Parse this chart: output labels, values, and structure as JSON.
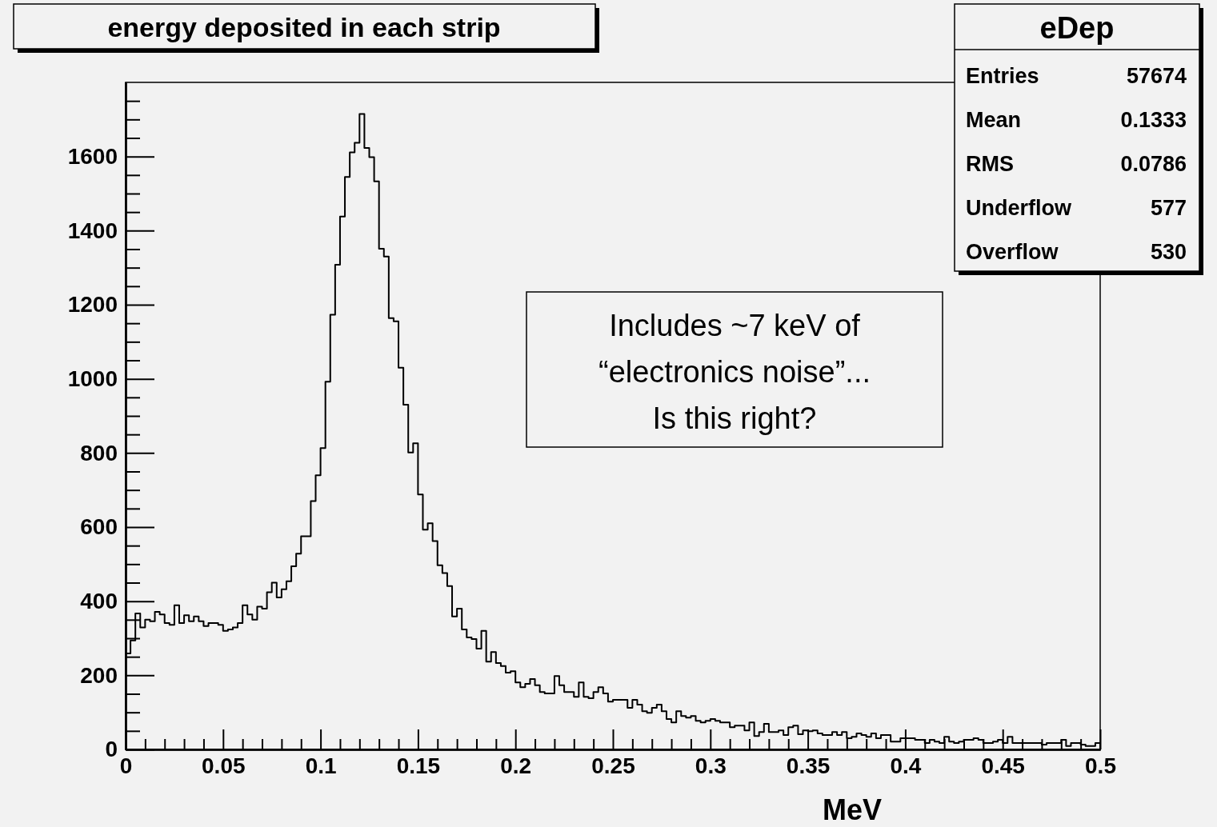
{
  "chart_data": {
    "type": "histogram",
    "title": "energy deposited in each strip",
    "xlabel": "MeV",
    "color": "#000000",
    "bins": [
      0,
      0.0025,
      0.005,
      0.0075,
      0.01,
      0.0125,
      0.015,
      0.0175,
      0.02,
      0.0225,
      0.025,
      0.0275,
      0.03,
      0.0325,
      0.035,
      0.0375,
      0.04,
      0.0425,
      0.045,
      0.0475,
      0.05,
      0.0525,
      0.055,
      0.0575,
      0.06,
      0.0625,
      0.065,
      0.0675,
      0.07,
      0.0725,
      0.075,
      0.0775,
      0.08,
      0.0825,
      0.085,
      0.0875,
      0.09,
      0.0925,
      0.095,
      0.0975,
      0.1,
      0.1025,
      0.105,
      0.1075,
      0.11,
      0.1125,
      0.115,
      0.1175,
      0.12,
      0.1225,
      0.125,
      0.1275,
      0.13,
      0.1325,
      0.135,
      0.1375,
      0.14,
      0.1425,
      0.145,
      0.1475,
      0.15,
      0.1525,
      0.155,
      0.1575,
      0.16,
      0.1625,
      0.165,
      0.1675,
      0.17,
      0.1725,
      0.175,
      0.1775,
      0.18,
      0.1825,
      0.185,
      0.1875,
      0.19,
      0.1925,
      0.195,
      0.1975,
      0.2,
      0.2025,
      0.205,
      0.2075,
      0.21,
      0.2125,
      0.215,
      0.2175,
      0.22,
      0.2225,
      0.225,
      0.2275,
      0.23,
      0.2325,
      0.235,
      0.2375,
      0.24,
      0.2425,
      0.245,
      0.2475,
      0.25,
      0.2525,
      0.255,
      0.2575,
      0.26,
      0.2625,
      0.265,
      0.2675,
      0.27,
      0.2725,
      0.275,
      0.2775,
      0.28,
      0.2825,
      0.285,
      0.2875,
      0.29,
      0.2925,
      0.295,
      0.2975,
      0.3,
      0.3025,
      0.305,
      0.3075,
      0.31,
      0.3125,
      0.315,
      0.3175,
      0.32,
      0.3225,
      0.325,
      0.3275,
      0.33,
      0.3325,
      0.335,
      0.3375,
      0.34,
      0.3425,
      0.345,
      0.3475,
      0.35,
      0.3525,
      0.355,
      0.3575,
      0.36,
      0.3625,
      0.365,
      0.3675,
      0.37,
      0.3725,
      0.375,
      0.3775,
      0.38,
      0.3825,
      0.385,
      0.3875,
      0.39,
      0.3925,
      0.395,
      0.3975,
      0.4,
      0.4025,
      0.405,
      0.4075,
      0.41,
      0.4125,
      0.415,
      0.4175,
      0.42,
      0.4225,
      0.425,
      0.4275,
      0.43,
      0.4325,
      0.435,
      0.4375,
      0.44,
      0.4425,
      0.445,
      0.4475,
      0.45,
      0.4525,
      0.455,
      0.4575,
      0.46,
      0.4625,
      0.465,
      0.4675,
      0.47,
      0.4725,
      0.475,
      0.4775,
      0.48,
      0.4825,
      0.485,
      0.4875,
      0.49,
      0.4925,
      0.495,
      0.4975,
      0.5
    ],
    "values": [
      259,
      294,
      367,
      329,
      350,
      346,
      371,
      364,
      341,
      336,
      389,
      341,
      362,
      346,
      359,
      346,
      333,
      341,
      341,
      336,
      320,
      324,
      329,
      341,
      389,
      364,
      350,
      385,
      380,
      424,
      450,
      410,
      432,
      454,
      494,
      528,
      575,
      575,
      670,
      740,
      813,
      992,
      1173,
      1308,
      1438,
      1545,
      1611,
      1637,
      1715,
      1623,
      1598,
      1533,
      1351,
      1330,
      1164,
      1155,
      1030,
      930,
      801,
      826,
      688,
      593,
      610,
      562,
      497,
      476,
      441,
      359,
      380,
      324,
      302,
      298,
      272,
      320,
      237,
      263,
      233,
      225,
      207,
      211,
      181,
      168,
      177,
      190,
      173,
      155,
      151,
      151,
      198,
      173,
      155,
      155,
      142,
      181,
      142,
      138,
      155,
      168,
      151,
      129,
      134,
      134,
      134,
      112,
      134,
      121,
      103,
      99,
      112,
      121,
      103,
      82,
      73,
      103,
      90,
      86,
      90,
      77,
      73,
      77,
      82,
      77,
      73,
      73,
      60,
      64,
      64,
      51,
      73,
      36,
      47,
      69,
      47,
      47,
      51,
      39,
      60,
      64,
      41,
      51,
      49,
      51,
      43,
      39,
      39,
      47,
      39,
      47,
      30,
      34,
      43,
      39,
      34,
      43,
      30,
      39,
      39,
      21,
      21,
      30,
      30,
      30,
      26,
      26,
      17,
      26,
      21,
      17,
      34,
      21,
      17,
      21,
      26,
      26,
      30,
      26,
      17,
      17,
      21,
      26,
      17,
      34,
      17,
      17,
      17,
      17,
      17,
      17,
      13,
      17,
      17,
      17,
      26,
      9,
      17,
      17,
      13,
      9,
      9,
      17
    ],
    "xlim": [
      0,
      0.5
    ],
    "xticks": [
      0,
      0.05,
      0.1,
      0.15,
      0.2,
      0.25,
      0.3,
      0.35,
      0.4,
      0.45,
      0.5
    ],
    "ylim": [
      0,
      1800
    ],
    "yticks": [
      0,
      200,
      400,
      600,
      800,
      1000,
      1200,
      1400,
      1600
    ],
    "annotations": [
      "eDep",
      "Entries 57674",
      "Mean 0.1333",
      "RMS 0.0786",
      "Underflow 577",
      "Overflow 530",
      "Includes ~7 keV of\n“electronics noise”...\nIs this right?"
    ]
  }
}
